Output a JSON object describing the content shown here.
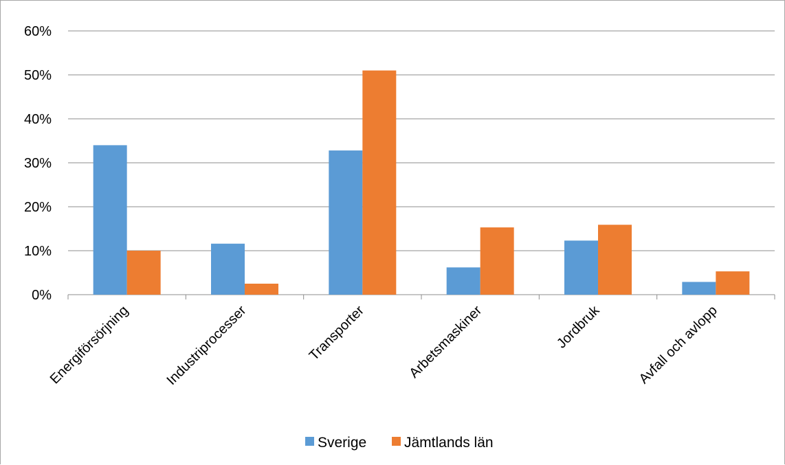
{
  "chart_data": {
    "type": "bar",
    "title": "",
    "xlabel": "",
    "ylabel": "",
    "ylim": [
      0,
      0.6
    ],
    "ytick_values": [
      0,
      0.1,
      0.2,
      0.3,
      0.4,
      0.5,
      0.6
    ],
    "ytick_labels": [
      "0%",
      "10%",
      "20%",
      "30%",
      "40%",
      "50%",
      "60%"
    ],
    "grid": true,
    "legend_position": "bottom",
    "categories": [
      "Energiförsörjning",
      "Industriprocesser",
      "Transporter",
      "Arbetsmaskiner",
      "Jordbruk",
      "Avfall och avlopp"
    ],
    "series": [
      {
        "name": "Sverige",
        "color": "#5b9bd5",
        "values": [
          0.34,
          0.116,
          0.328,
          0.062,
          0.123,
          0.029
        ]
      },
      {
        "name": "Jämtlands län",
        "color": "#ed7d31",
        "values": [
          0.1,
          0.025,
          0.51,
          0.153,
          0.159,
          0.053
        ]
      }
    ]
  }
}
